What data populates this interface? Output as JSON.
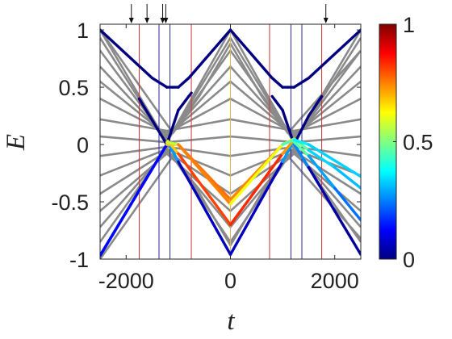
{
  "chart_data": {
    "type": "line",
    "title": "",
    "xlabel": "t",
    "ylabel": "E",
    "xlim": [
      -2500,
      2500
    ],
    "ylim": [
      -1,
      1.05
    ],
    "grid": false,
    "xticks": [
      -2000,
      0,
      2000
    ],
    "xtick_labels": [
      "-2000",
      "0",
      "2000"
    ],
    "yticks": [
      -1,
      -0.5,
      0,
      0.5,
      1
    ],
    "ytick_labels": [
      "-1",
      "-0.5",
      "0",
      "0.5",
      "1"
    ],
    "colorbar": {
      "colormap": "jet",
      "range": [
        0,
        1
      ],
      "tick_values": [
        0,
        0.5,
        1
      ],
      "tick_labels": [
        "0",
        "0.5",
        "1"
      ]
    },
    "marker_arrows_x": [
      -1900,
      -1600,
      -1300,
      -1240,
      1830
    ],
    "vertical_lines": [
      {
        "x": -1750,
        "color": "#cc3333"
      },
      {
        "x": -1370,
        "color": "#2a2a99"
      },
      {
        "x": -1160,
        "color": "#2a2a99"
      },
      {
        "x": -750,
        "color": "#cc3333"
      },
      {
        "x": 0,
        "color": "#e6b34d"
      },
      {
        "x": 750,
        "color": "#cc3333"
      },
      {
        "x": 1160,
        "color": "#2a2a99"
      },
      {
        "x": 1370,
        "color": "#2a2a99"
      },
      {
        "x": 1750,
        "color": "#cc3333"
      }
    ],
    "background_levels": [
      {
        "x": [
          -2500,
          -1220,
          0,
          1220,
          2500
        ],
        "y": [
          1.0,
          0.02,
          1.0,
          0.02,
          1.0
        ]
      },
      {
        "x": [
          -2500,
          -1220,
          0,
          1220,
          2500
        ],
        "y": [
          0.93,
          0.02,
          0.93,
          0.02,
          0.93
        ]
      },
      {
        "x": [
          -2500,
          -1220,
          0,
          1220,
          2500
        ],
        "y": [
          0.82,
          0.04,
          0.82,
          0.04,
          0.82
        ]
      },
      {
        "x": [
          -2500,
          -1220,
          0,
          1220,
          2500
        ],
        "y": [
          0.68,
          0.06,
          0.68,
          0.06,
          0.68
        ]
      },
      {
        "x": [
          -2500,
          -1220,
          0,
          1220,
          2500
        ],
        "y": [
          0.55,
          0.08,
          0.55,
          0.08,
          0.55
        ]
      },
      {
        "x": [
          -2500,
          -1220,
          0,
          1220,
          2500
        ],
        "y": [
          0.4,
          0.1,
          0.4,
          0.1,
          0.4
        ]
      },
      {
        "x": [
          -2500,
          -1220,
          0,
          1220,
          2500
        ],
        "y": [
          0.22,
          0.12,
          0.22,
          0.12,
          0.22
        ]
      },
      {
        "x": [
          -2500,
          -1220,
          0,
          1220,
          2500
        ],
        "y": [
          0.07,
          0.02,
          0.07,
          0.02,
          0.07
        ]
      },
      {
        "x": [
          -2500,
          -1220,
          0,
          1220,
          2500
        ],
        "y": [
          -0.1,
          -0.02,
          -0.1,
          -0.02,
          -0.1
        ]
      },
      {
        "x": [
          -2500,
          -1220,
          0,
          1220,
          2500
        ],
        "y": [
          -0.27,
          -0.04,
          -0.27,
          -0.04,
          -0.27
        ]
      },
      {
        "x": [
          -2500,
          -1220,
          0,
          1220,
          2500
        ],
        "y": [
          -0.43,
          -0.06,
          -0.43,
          -0.06,
          -0.43
        ]
      },
      {
        "x": [
          -2500,
          -1220,
          0,
          1220,
          2500
        ],
        "y": [
          -0.58,
          -0.08,
          -0.58,
          -0.08,
          -0.58
        ]
      },
      {
        "x": [
          -2500,
          -1220,
          0,
          1220,
          2500
        ],
        "y": [
          -0.72,
          -0.05,
          -0.72,
          -0.05,
          -0.72
        ]
      },
      {
        "x": [
          -2500,
          -1220,
          0,
          1220,
          2500
        ],
        "y": [
          -0.85,
          -0.03,
          -0.85,
          -0.03,
          -0.85
        ]
      },
      {
        "x": [
          -2500,
          -1100,
          -600,
          0,
          600,
          1100,
          2500
        ],
        "y": [
          1.0,
          0.1,
          0.42,
          0.88,
          0.42,
          0.1,
          0.82
        ]
      },
      {
        "x": [
          -2500,
          -1100,
          -600,
          0,
          600,
          1100,
          2500
        ],
        "y": [
          -1.0,
          -0.1,
          -0.42,
          -0.88,
          -0.42,
          -0.1,
          -0.82
        ]
      }
    ],
    "series": [
      {
        "x": [
          -2500,
          -1500,
          -1220,
          -1100,
          -1000,
          -800,
          0,
          800,
          1000,
          1100,
          1220,
          1500,
          2500
        ],
        "y": [
          1.0,
          0.58,
          0.5,
          0.5,
          0.5,
          0.58,
          1.0,
          0.58,
          0.5,
          0.5,
          0.5,
          0.58,
          1.0
        ],
        "c": [
          0,
          0,
          0,
          0,
          0,
          0,
          0,
          0,
          0,
          0,
          0,
          0,
          0
        ]
      },
      {
        "x": [
          -1750,
          -1220,
          -1000,
          -800,
          -750
        ],
        "y": [
          0.4,
          0.0,
          0.3,
          0.42,
          0.45
        ],
        "c": [
          0,
          0,
          0,
          0,
          0
        ]
      },
      {
        "x": [
          800,
          1000,
          1220,
          1500,
          1750
        ],
        "y": [
          0.42,
          0.3,
          0.0,
          0.25,
          0.42
        ],
        "c": [
          0,
          0,
          0,
          0,
          0
        ]
      },
      {
        "x": [
          -2500,
          -1220,
          -1200,
          -1000,
          0,
          1000,
          1200,
          1500,
          2000,
          2500
        ],
        "y": [
          -0.97,
          0.0,
          0.02,
          -0.15,
          -0.96,
          -0.15,
          0.02,
          -0.2,
          -0.58,
          -0.96
        ],
        "c": [
          0.02,
          0.06,
          0.45,
          0.1,
          0.02,
          0.1,
          0.45,
          0.06,
          0.03,
          0.02
        ]
      },
      {
        "x": [
          -2500,
          -1220,
          -1200,
          -1000,
          0,
          1000,
          1200,
          1500,
          2000,
          2500
        ],
        "y": [
          -0.97,
          0.0,
          0.03,
          -0.08,
          -0.7,
          -0.08,
          0.03,
          -0.1,
          -0.38,
          -0.66
        ],
        "c": [
          0.06,
          0.2,
          0.55,
          0.8,
          0.82,
          0.85,
          0.6,
          0.32,
          0.25,
          0.22
        ]
      },
      {
        "x": [
          -1220,
          -1000,
          0,
          1000,
          1220,
          1500,
          2000,
          2500
        ],
        "y": [
          0.0,
          0.0,
          -0.48,
          0.0,
          0.05,
          -0.05,
          -0.2,
          -0.38
        ],
        "c": [
          0.62,
          0.75,
          0.78,
          0.7,
          0.6,
          0.35,
          0.32,
          0.3
        ]
      },
      {
        "x": [
          -1220,
          -1000,
          0,
          1000,
          1220,
          1500,
          2000,
          2500
        ],
        "y": [
          0.02,
          0.0,
          -0.52,
          0.0,
          0.04,
          0.0,
          -0.14,
          -0.28
        ],
        "c": [
          0.35,
          0.78,
          0.72,
          0.5,
          0.4,
          0.33,
          0.33,
          0.33
        ]
      }
    ]
  }
}
